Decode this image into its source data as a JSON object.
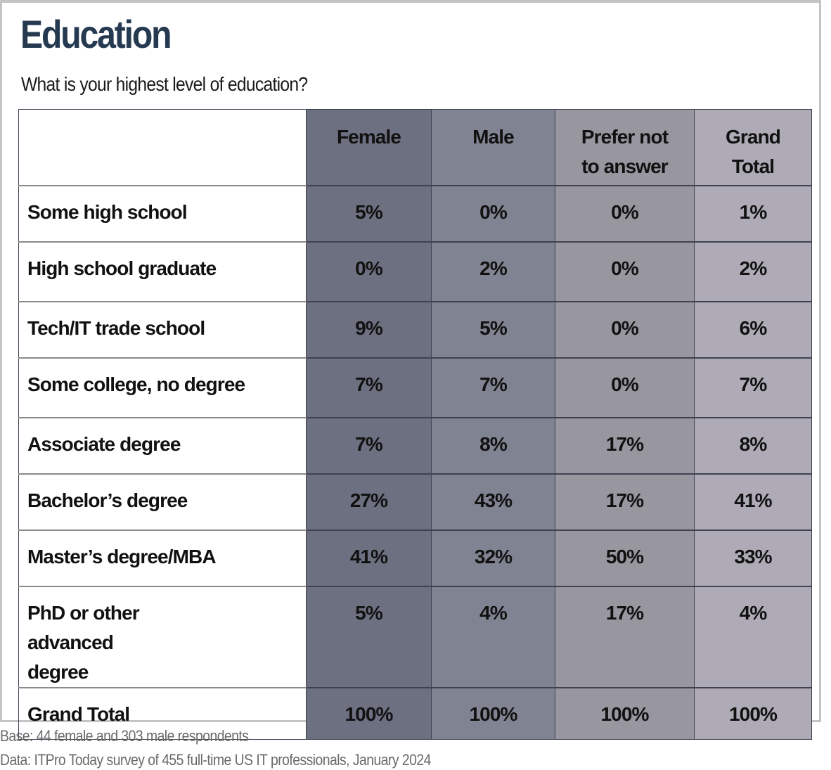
{
  "chart_data": {
    "type": "table",
    "title": "Education",
    "subtitle": "What is your highest level of education?",
    "columns": [
      "Female",
      "Male",
      "Prefer not to answer",
      "Grand Total"
    ],
    "column_colors": [
      "#6c7080",
      "#808391",
      "#98969f",
      "#aeabb6"
    ],
    "rows": [
      {
        "label": "Some high school",
        "values": [
          "5%",
          "0%",
          "0%",
          "1%"
        ]
      },
      {
        "label": "High school graduate",
        "values": [
          "0%",
          "2%",
          "0%",
          "2%"
        ]
      },
      {
        "label": "Tech/IT trade school",
        "values": [
          "9%",
          "5%",
          "0%",
          "6%"
        ]
      },
      {
        "label": "Some college, no degree",
        "values": [
          "7%",
          "7%",
          "0%",
          "7%"
        ]
      },
      {
        "label": "Associate degree",
        "values": [
          "7%",
          "8%",
          "17%",
          "8%"
        ]
      },
      {
        "label": "Bachelor’s degree",
        "values": [
          "27%",
          "43%",
          "17%",
          "41%"
        ]
      },
      {
        "label": "Master’s degree/MBA",
        "values": [
          "41%",
          "32%",
          "50%",
          "33%"
        ]
      },
      {
        "label": "PhD or other advanced degree",
        "values": [
          "5%",
          "4%",
          "17%",
          "4%"
        ]
      },
      {
        "label": "Grand Total",
        "values": [
          "100%",
          "100%",
          "100%",
          "100%"
        ]
      }
    ]
  },
  "footer": {
    "base": "Base: 44 female and 303 male respondents",
    "source": "Data: ITPro Today survey of 455 full-time US IT professionals, January 2024"
  }
}
